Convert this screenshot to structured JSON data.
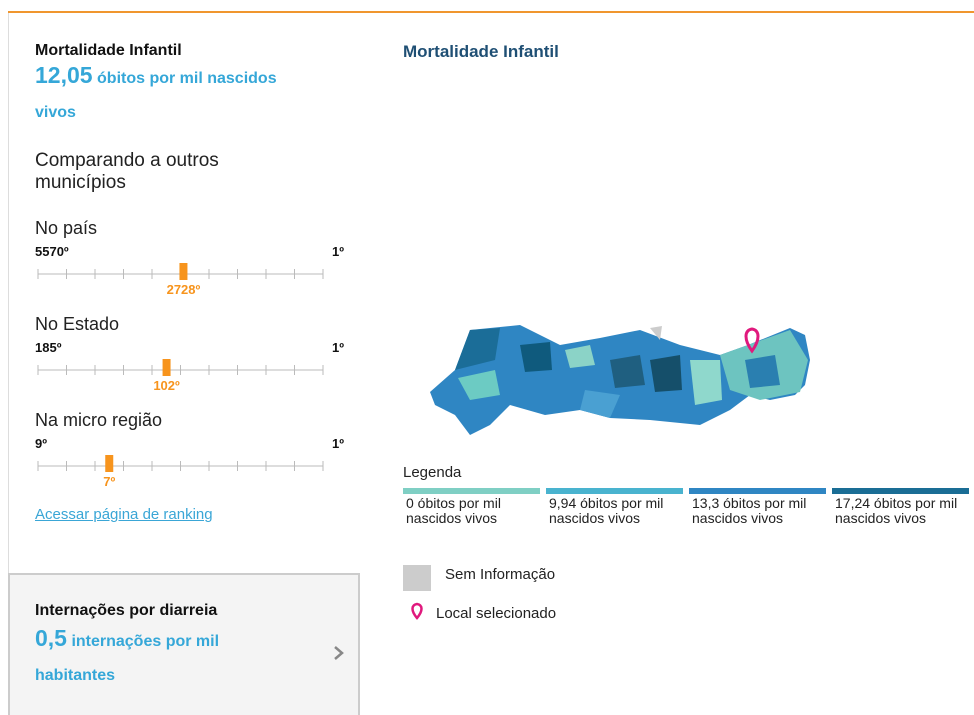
{
  "indicator": {
    "title": "Mortalidade Infantil",
    "value": "12,05",
    "unit": "óbitos por mil nascidos vivos"
  },
  "comparison_title": "Comparando a outros municípios",
  "rankings": [
    {
      "label": "No país",
      "min": {
        "value": 5570,
        "label": "5570º"
      },
      "max": {
        "value": 1,
        "label": "1º"
      },
      "position": {
        "value": 2728,
        "label": "2728º"
      }
    },
    {
      "label": "No Estado",
      "min": {
        "value": 185,
        "label": "185º"
      },
      "max": {
        "value": 1,
        "label": "1º"
      },
      "position": {
        "value": 102,
        "label": "102º"
      }
    },
    {
      "label": "Na micro região",
      "min": {
        "value": 9,
        "label": "9º"
      },
      "max": {
        "value": 1,
        "label": "1º"
      },
      "position": {
        "value": 7,
        "label": "7º"
      }
    }
  ],
  "ranking_link": "Acessar página de ranking",
  "next_indicator": {
    "title": "Internações por diarreia",
    "value": "0,5",
    "unit": "internações por mil habitantes"
  },
  "map": {
    "title": "Mortalidade Infantil",
    "legend_title": "Legenda",
    "legend": [
      "0 óbitos por mil nascidos vivos",
      "9,94 óbitos por mil nascidos vivos",
      "13,3 óbitos por mil nascidos vivos",
      "17,24 óbitos por mil nascidos vivos"
    ],
    "no_info": "Sem Informação",
    "selected": "Local selecionado"
  }
}
